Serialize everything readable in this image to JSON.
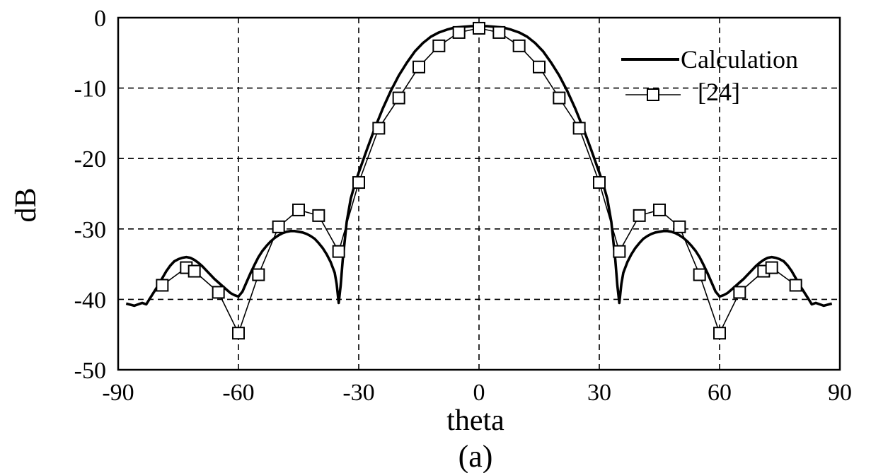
{
  "chart_data": {
    "type": "line",
    "title": "",
    "caption": "(a)",
    "xlabel": "theta",
    "ylabel": "dB",
    "xlim": [
      -90,
      90
    ],
    "ylim": [
      -50,
      0
    ],
    "xticks": [
      -90,
      -60,
      -30,
      0,
      30,
      60,
      90
    ],
    "yticks": [
      0,
      -10,
      -20,
      -30,
      -40,
      -50
    ],
    "xtick_labels": [
      "-90",
      "-60",
      "-30",
      "0",
      "30",
      "60",
      "90"
    ],
    "ytick_labels": [
      "0",
      "-10",
      "-20",
      "-30",
      "-40",
      "-50"
    ],
    "grid": true,
    "legend_position": "top-right",
    "series": [
      {
        "name": "Calculation",
        "style": "thick-line",
        "color": "#000000",
        "x": [
          -88,
          -86,
          -84,
          -83,
          -82,
          -81,
          -80,
          -79,
          -78,
          -77,
          -76,
          -75,
          -74,
          -73,
          -72,
          -71,
          -70,
          -69,
          -68,
          -67,
          -66,
          -65,
          -64,
          -63,
          -62,
          -61,
          -60,
          -59,
          -58,
          -57,
          -56,
          -55,
          -54,
          -53,
          -52,
          -51,
          -50,
          -49,
          -48,
          -47,
          -46,
          -45,
          -44,
          -43,
          -42,
          -41,
          -40,
          -39,
          -38,
          -37,
          -36,
          -35.5,
          -35,
          -34.5,
          -34,
          -33,
          -32,
          -31,
          -30,
          -28,
          -26,
          -24,
          -22,
          -20,
          -18,
          -16,
          -14,
          -12,
          -10,
          -8,
          -6,
          -4,
          -2,
          0,
          2,
          4,
          6,
          8,
          10,
          12,
          14,
          16,
          18,
          20,
          22,
          24,
          26,
          28,
          30,
          31,
          32,
          33,
          34,
          34.5,
          35,
          35.5,
          36,
          37,
          38,
          39,
          40,
          41,
          42,
          43,
          44,
          45,
          46,
          47,
          48,
          49,
          50,
          51,
          52,
          53,
          54,
          55,
          56,
          57,
          58,
          59,
          60,
          61,
          62,
          63,
          64,
          65,
          66,
          67,
          68,
          69,
          70,
          71,
          72,
          73,
          74,
          75,
          76,
          77,
          78,
          79,
          80,
          81,
          82,
          83,
          84,
          86,
          88
        ],
        "values": [
          -40.6,
          -40.9,
          -40.5,
          -40.7,
          -39.8,
          -38.9,
          -38.0,
          -37.0,
          -36.0,
          -35.2,
          -34.6,
          -34.3,
          -34.1,
          -34.0,
          -34.1,
          -34.4,
          -34.8,
          -35.3,
          -35.9,
          -36.5,
          -37.1,
          -37.6,
          -38.1,
          -38.6,
          -39.1,
          -39.4,
          -39.6,
          -38.9,
          -37.6,
          -36.3,
          -35.1,
          -34.0,
          -33.1,
          -32.4,
          -31.8,
          -31.3,
          -30.9,
          -30.6,
          -30.4,
          -30.3,
          -30.3,
          -30.4,
          -30.5,
          -30.7,
          -31.0,
          -31.4,
          -32.0,
          -32.7,
          -33.6,
          -34.7,
          -36.2,
          -37.8,
          -40.5,
          -38.0,
          -34.5,
          -29.0,
          -25.7,
          -23.7,
          -22.0,
          -18.8,
          -15.7,
          -12.9,
          -10.4,
          -8.2,
          -6.4,
          -4.8,
          -3.6,
          -2.7,
          -2.1,
          -1.7,
          -1.4,
          -1.3,
          -1.2,
          -1.2,
          -1.2,
          -1.3,
          -1.4,
          -1.7,
          -2.1,
          -2.7,
          -3.6,
          -4.8,
          -6.4,
          -8.2,
          -10.4,
          -12.9,
          -15.7,
          -18.8,
          -22.0,
          -23.7,
          -25.7,
          -29.0,
          -34.5,
          -38.0,
          -40.5,
          -37.8,
          -36.2,
          -34.7,
          -33.6,
          -32.7,
          -32.0,
          -31.4,
          -31.0,
          -30.7,
          -30.5,
          -30.4,
          -30.3,
          -30.3,
          -30.4,
          -30.6,
          -30.9,
          -31.3,
          -31.8,
          -32.4,
          -33.1,
          -34.0,
          -35.1,
          -36.3,
          -37.6,
          -38.9,
          -39.6,
          -39.4,
          -39.1,
          -38.6,
          -38.1,
          -37.6,
          -37.1,
          -36.5,
          -35.9,
          -35.3,
          -34.8,
          -34.4,
          -34.1,
          -34.0,
          -34.1,
          -34.3,
          -34.6,
          -35.2,
          -36.0,
          -37.0,
          -38.0,
          -38.9,
          -39.8,
          -40.7,
          -40.5,
          -40.9,
          -40.6
        ]
      },
      {
        "name": "[24]",
        "style": "thin-line-square-markers",
        "color": "#000000",
        "x": [
          -79,
          -73,
          -71,
          -65,
          -60,
          -55,
          -50,
          -45,
          -40,
          -35,
          -30,
          -25,
          -20,
          -15,
          -10,
          -5,
          0,
          5,
          10,
          15,
          20,
          25,
          30,
          35,
          40,
          45,
          50,
          55,
          60,
          65,
          71,
          73,
          79
        ],
        "values": [
          -38.0,
          -35.5,
          -36.0,
          -39.0,
          -44.8,
          -36.5,
          -29.7,
          -27.3,
          -28.1,
          -33.2,
          -23.4,
          -15.7,
          -11.4,
          -7.0,
          -4.0,
          -2.1,
          -1.5,
          -2.1,
          -4.0,
          -7.0,
          -11.4,
          -15.7,
          -23.4,
          -33.2,
          -28.1,
          -27.3,
          -29.7,
          -36.5,
          -44.8,
          -39.0,
          -36.0,
          -35.5,
          -38.0
        ]
      }
    ]
  }
}
